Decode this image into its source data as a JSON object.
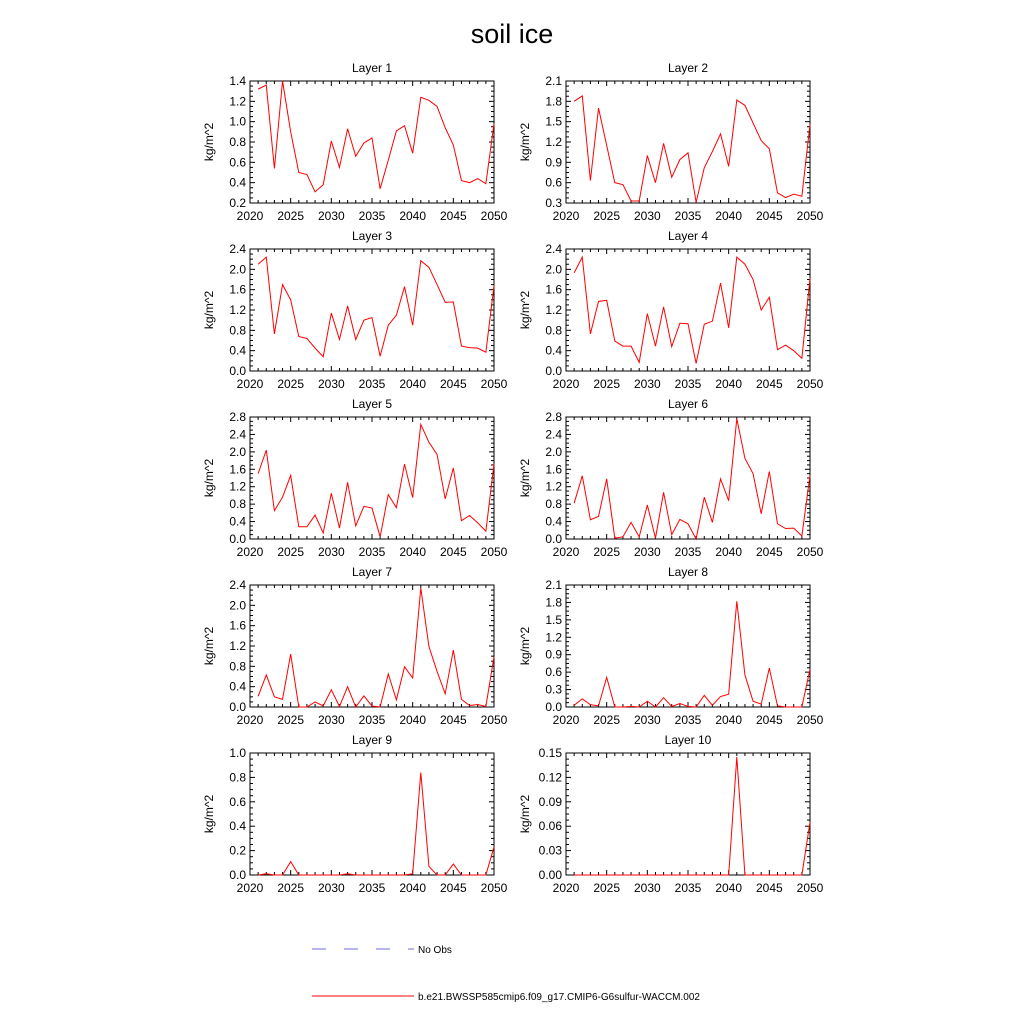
{
  "title": "soil ice",
  "units": "kg/m^2",
  "legend": {
    "obs_label": "No Obs",
    "obs_color": "#6a6adf",
    "model_label": "b.e21.BWSSP585cmip6.f09_g17.CMIP6-G6sulfur-WACCM.002",
    "model_color": "#ff0000"
  },
  "x_ticks": [
    "2020",
    "2025",
    "2030",
    "2035",
    "2040",
    "2045",
    "2050"
  ],
  "chart_data": [
    {
      "type": "line",
      "title": "Layer 1",
      "ylabel": "kg/m^2",
      "xlim": [
        2020,
        2050
      ],
      "ylim": [
        0.2,
        1.4
      ],
      "yticks": [
        "0.2",
        "0.4",
        "0.6",
        "0.8",
        "1.0",
        "1.2",
        "1.4"
      ],
      "x": [
        2021,
        2022,
        2023,
        2024,
        2025,
        2026,
        2027,
        2028,
        2029,
        2030,
        2031,
        2032,
        2033,
        2034,
        2035,
        2036,
        2037,
        2038,
        2039,
        2040,
        2041,
        2042,
        2043,
        2044,
        2045,
        2046,
        2047,
        2048,
        2049,
        2050
      ],
      "series": [
        {
          "name": "b.e21.BWSSP585cmip6.f09_g17.CMIP6-G6sulfur-WACCM.002",
          "values": [
            1.32,
            1.36,
            0.54,
            1.4,
            0.9,
            0.5,
            0.48,
            0.31,
            0.38,
            0.81,
            0.55,
            0.93,
            0.66,
            0.79,
            0.84,
            0.34,
            0.62,
            0.91,
            0.96,
            0.69,
            1.24,
            1.21,
            1.15,
            0.94,
            0.77,
            0.42,
            0.4,
            0.44,
            0.39,
            0.98
          ]
        }
      ]
    },
    {
      "type": "line",
      "title": "Layer 2",
      "ylabel": "kg/m^2",
      "xlim": [
        2020,
        2050
      ],
      "ylim": [
        0.3,
        2.1
      ],
      "yticks": [
        "0.3",
        "0.6",
        "0.9",
        "1.2",
        "1.5",
        "1.8",
        "2.1"
      ],
      "x": [
        2021,
        2022,
        2023,
        2024,
        2025,
        2026,
        2027,
        2028,
        2029,
        2030,
        2031,
        2032,
        2033,
        2034,
        2035,
        2036,
        2037,
        2038,
        2039,
        2040,
        2041,
        2042,
        2043,
        2044,
        2045,
        2046,
        2047,
        2048,
        2049,
        2050
      ],
      "series": [
        {
          "name": "b.e21.BWSSP585cmip6.f09_g17.CMIP6-G6sulfur-WACCM.002",
          "values": [
            1.8,
            1.88,
            0.63,
            1.7,
            1.15,
            0.6,
            0.57,
            0.33,
            0.33,
            1.0,
            0.6,
            1.18,
            0.68,
            0.94,
            1.04,
            0.31,
            0.82,
            1.06,
            1.32,
            0.84,
            1.82,
            1.74,
            1.48,
            1.22,
            1.1,
            0.45,
            0.38,
            0.43,
            0.4,
            1.46
          ]
        }
      ]
    },
    {
      "type": "line",
      "title": "Layer 3",
      "ylabel": "kg/m^2",
      "xlim": [
        2020,
        2050
      ],
      "ylim": [
        0.0,
        2.4
      ],
      "yticks": [
        "0.0",
        "0.4",
        "0.8",
        "1.2",
        "1.6",
        "2.0",
        "2.4"
      ],
      "x": [
        2021,
        2022,
        2023,
        2024,
        2025,
        2026,
        2027,
        2028,
        2029,
        2030,
        2031,
        2032,
        2033,
        2034,
        2035,
        2036,
        2037,
        2038,
        2039,
        2040,
        2041,
        2042,
        2043,
        2044,
        2045,
        2046,
        2047,
        2048,
        2049,
        2050
      ],
      "series": [
        {
          "name": "b.e21.BWSSP585cmip6.f09_g17.CMIP6-G6sulfur-WACCM.002",
          "values": [
            2.1,
            2.24,
            0.73,
            1.7,
            1.4,
            0.68,
            0.64,
            0.45,
            0.28,
            1.14,
            0.62,
            1.28,
            0.62,
            1.0,
            1.05,
            0.29,
            0.9,
            1.1,
            1.66,
            0.9,
            2.17,
            2.04,
            1.7,
            1.35,
            1.36,
            0.49,
            0.46,
            0.45,
            0.37,
            1.68
          ]
        }
      ]
    },
    {
      "type": "line",
      "title": "Layer 4",
      "ylabel": "kg/m^2",
      "xlim": [
        2020,
        2050
      ],
      "ylim": [
        0.0,
        2.4
      ],
      "yticks": [
        "0.0",
        "0.4",
        "0.8",
        "1.2",
        "1.6",
        "2.0",
        "2.4"
      ],
      "x": [
        2021,
        2022,
        2023,
        2024,
        2025,
        2026,
        2027,
        2028,
        2029,
        2030,
        2031,
        2032,
        2033,
        2034,
        2035,
        2036,
        2037,
        2038,
        2039,
        2040,
        2041,
        2042,
        2043,
        2044,
        2045,
        2046,
        2047,
        2048,
        2049,
        2050
      ],
      "series": [
        {
          "name": "b.e21.BWSSP585cmip6.f09_g17.CMIP6-G6sulfur-WACCM.002",
          "values": [
            1.93,
            2.24,
            0.73,
            1.37,
            1.39,
            0.59,
            0.49,
            0.49,
            0.17,
            1.13,
            0.49,
            1.26,
            0.48,
            0.94,
            0.93,
            0.15,
            0.92,
            0.98,
            1.73,
            0.85,
            2.24,
            2.1,
            1.8,
            1.2,
            1.45,
            0.42,
            0.51,
            0.4,
            0.25,
            1.82
          ]
        }
      ]
    },
    {
      "type": "line",
      "title": "Layer 5",
      "ylabel": "kg/m^2",
      "xlim": [
        2020,
        2050
      ],
      "ylim": [
        0.0,
        2.8
      ],
      "yticks": [
        "0.0",
        "0.4",
        "0.8",
        "1.2",
        "1.6",
        "2.0",
        "2.4",
        "2.8"
      ],
      "x": [
        2021,
        2022,
        2023,
        2024,
        2025,
        2026,
        2027,
        2028,
        2029,
        2030,
        2031,
        2032,
        2033,
        2034,
        2035,
        2036,
        2037,
        2038,
        2039,
        2040,
        2041,
        2042,
        2043,
        2044,
        2045,
        2046,
        2047,
        2048,
        2049,
        2050
      ],
      "series": [
        {
          "name": "b.e21.BWSSP585cmip6.f09_g17.CMIP6-G6sulfur-WACCM.002",
          "values": [
            1.5,
            2.04,
            0.65,
            0.96,
            1.46,
            0.28,
            0.28,
            0.55,
            0.14,
            1.05,
            0.25,
            1.3,
            0.3,
            0.75,
            0.71,
            0.05,
            1.02,
            0.72,
            1.72,
            0.95,
            2.63,
            2.22,
            1.94,
            0.92,
            1.63,
            0.42,
            0.54,
            0.37,
            0.18,
            1.72
          ]
        }
      ]
    },
    {
      "type": "line",
      "title": "Layer 6",
      "ylabel": "kg/m^2",
      "xlim": [
        2020,
        2050
      ],
      "ylim": [
        0.0,
        2.8
      ],
      "yticks": [
        "0.0",
        "0.4",
        "0.8",
        "1.2",
        "1.6",
        "2.0",
        "2.4",
        "2.8"
      ],
      "x": [
        2021,
        2022,
        2023,
        2024,
        2025,
        2026,
        2027,
        2028,
        2029,
        2030,
        2031,
        2032,
        2033,
        2034,
        2035,
        2036,
        2037,
        2038,
        2039,
        2040,
        2041,
        2042,
        2043,
        2044,
        2045,
        2046,
        2047,
        2048,
        2049,
        2050
      ],
      "series": [
        {
          "name": "b.e21.BWSSP585cmip6.f09_g17.CMIP6-G6sulfur-WACCM.002",
          "values": [
            0.82,
            1.45,
            0.44,
            0.52,
            1.38,
            0.02,
            0.05,
            0.38,
            0.05,
            0.78,
            0.02,
            1.07,
            0.1,
            0.45,
            0.35,
            0.0,
            0.96,
            0.38,
            1.38,
            0.88,
            2.76,
            1.85,
            1.5,
            0.58,
            1.55,
            0.35,
            0.24,
            0.25,
            0.07,
            1.46
          ]
        }
      ]
    },
    {
      "type": "line",
      "title": "Layer 7",
      "ylabel": "kg/m^2",
      "xlim": [
        2020,
        2050
      ],
      "ylim": [
        0.0,
        2.4
      ],
      "yticks": [
        "0.0",
        "0.4",
        "0.8",
        "1.2",
        "1.6",
        "2.0",
        "2.4"
      ],
      "x": [
        2021,
        2022,
        2023,
        2024,
        2025,
        2026,
        2027,
        2028,
        2029,
        2030,
        2031,
        2032,
        2033,
        2034,
        2035,
        2036,
        2037,
        2038,
        2039,
        2040,
        2041,
        2042,
        2043,
        2044,
        2045,
        2046,
        2047,
        2048,
        2049,
        2050
      ],
      "series": [
        {
          "name": "b.e21.BWSSP585cmip6.f09_g17.CMIP6-G6sulfur-WACCM.002",
          "values": [
            0.21,
            0.63,
            0.2,
            0.15,
            1.04,
            0.0,
            0.0,
            0.1,
            0.02,
            0.34,
            0.01,
            0.4,
            0.0,
            0.22,
            0.02,
            0.0,
            0.65,
            0.14,
            0.79,
            0.57,
            2.34,
            1.19,
            0.7,
            0.26,
            1.12,
            0.15,
            0.03,
            0.05,
            0.01,
            0.99
          ]
        }
      ]
    },
    {
      "type": "line",
      "title": "Layer 8",
      "ylabel": "kg/m^2",
      "xlim": [
        2020,
        2050
      ],
      "ylim": [
        0.0,
        2.1
      ],
      "yticks": [
        "0.0",
        "0.3",
        "0.6",
        "0.9",
        "1.2",
        "1.5",
        "1.8",
        "2.1"
      ],
      "x": [
        2021,
        2022,
        2023,
        2024,
        2025,
        2026,
        2027,
        2028,
        2029,
        2030,
        2031,
        2032,
        2033,
        2034,
        2035,
        2036,
        2037,
        2038,
        2039,
        2040,
        2041,
        2042,
        2043,
        2044,
        2045,
        2046,
        2047,
        2048,
        2049,
        2050
      ],
      "series": [
        {
          "name": "b.e21.BWSSP585cmip6.f09_g17.CMIP6-G6sulfur-WACCM.002",
          "values": [
            0.03,
            0.14,
            0.04,
            0.02,
            0.51,
            0.0,
            0.0,
            0.01,
            0.0,
            0.1,
            0.0,
            0.16,
            0.01,
            0.06,
            0.01,
            0.0,
            0.2,
            0.03,
            0.18,
            0.22,
            1.82,
            0.55,
            0.1,
            0.05,
            0.67,
            0.02,
            0.0,
            0.0,
            0.0,
            0.65
          ]
        }
      ]
    },
    {
      "type": "line",
      "title": "Layer 9",
      "ylabel": "kg/m^2",
      "xlim": [
        2020,
        2050
      ],
      "ylim": [
        0.0,
        1.0
      ],
      "yticks": [
        "0.0",
        "0.2",
        "0.4",
        "0.6",
        "0.8",
        "1.0"
      ],
      "x": [
        2021,
        2022,
        2023,
        2024,
        2025,
        2026,
        2027,
        2028,
        2029,
        2030,
        2031,
        2032,
        2033,
        2034,
        2035,
        2036,
        2037,
        2038,
        2039,
        2040,
        2041,
        2042,
        2043,
        2044,
        2045,
        2046,
        2047,
        2048,
        2049,
        2050
      ],
      "series": [
        {
          "name": "b.e21.BWSSP585cmip6.f09_g17.CMIP6-G6sulfur-WACCM.002",
          "values": [
            0.0,
            0.01,
            0.0,
            0.0,
            0.11,
            0.0,
            0.0,
            0.0,
            0.0,
            0.0,
            0.0,
            0.01,
            0.0,
            0.0,
            0.0,
            0.0,
            0.0,
            0.0,
            0.0,
            0.01,
            0.84,
            0.07,
            0.0,
            0.0,
            0.09,
            0.0,
            0.0,
            0.0,
            0.0,
            0.23
          ]
        }
      ]
    },
    {
      "type": "line",
      "title": "Layer 10",
      "ylabel": "kg/m^2",
      "xlim": [
        2020,
        2050
      ],
      "ylim": [
        0.0,
        0.15
      ],
      "yticks": [
        "0.00",
        "0.03",
        "0.06",
        "0.09",
        "0.12",
        "0.15"
      ],
      "x": [
        2021,
        2022,
        2023,
        2024,
        2025,
        2026,
        2027,
        2028,
        2029,
        2030,
        2031,
        2032,
        2033,
        2034,
        2035,
        2036,
        2037,
        2038,
        2039,
        2040,
        2041,
        2042,
        2043,
        2044,
        2045,
        2046,
        2047,
        2048,
        2049,
        2050
      ],
      "series": [
        {
          "name": "b.e21.BWSSP585cmip6.f09_g17.CMIP6-G6sulfur-WACCM.002",
          "values": [
            0,
            0,
            0,
            0,
            0,
            0,
            0,
            0,
            0,
            0,
            0,
            0,
            0,
            0,
            0,
            0,
            0,
            0,
            0,
            0,
            0.145,
            0,
            0,
            0,
            0,
            0,
            0,
            0,
            0,
            0.065
          ]
        }
      ]
    }
  ]
}
